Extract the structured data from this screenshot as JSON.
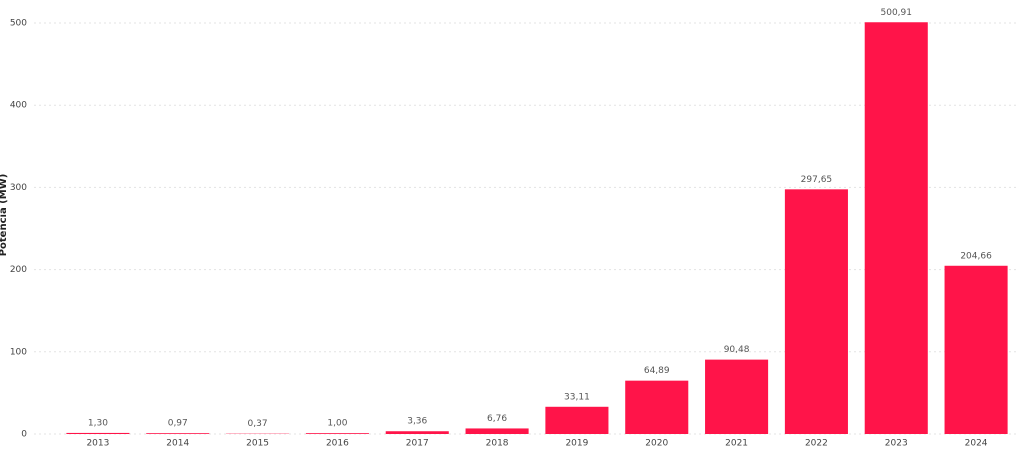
{
  "chart_data": {
    "type": "bar",
    "y_label": "Potencia (MW)",
    "categories": [
      "2013",
      "2014",
      "2015",
      "2016",
      "2017",
      "2018",
      "2019",
      "2020",
      "2021",
      "2022",
      "2023",
      "2024"
    ],
    "values": [
      1.3,
      0.97,
      0.37,
      1.0,
      3.36,
      6.76,
      33.11,
      64.89,
      90.48,
      297.65,
      500.91,
      204.66
    ],
    "value_labels": [
      "1,30",
      "0,97",
      "0,37",
      "1,00",
      "3,36",
      "6,76",
      "33,11",
      "64,89",
      "90,48",
      "297,65",
      "500,91",
      "204,66"
    ],
    "color": "#ff1449",
    "ylim": [
      0,
      500
    ],
    "yticks": [
      0,
      100,
      200,
      300,
      400,
      500
    ],
    "grid": true
  }
}
